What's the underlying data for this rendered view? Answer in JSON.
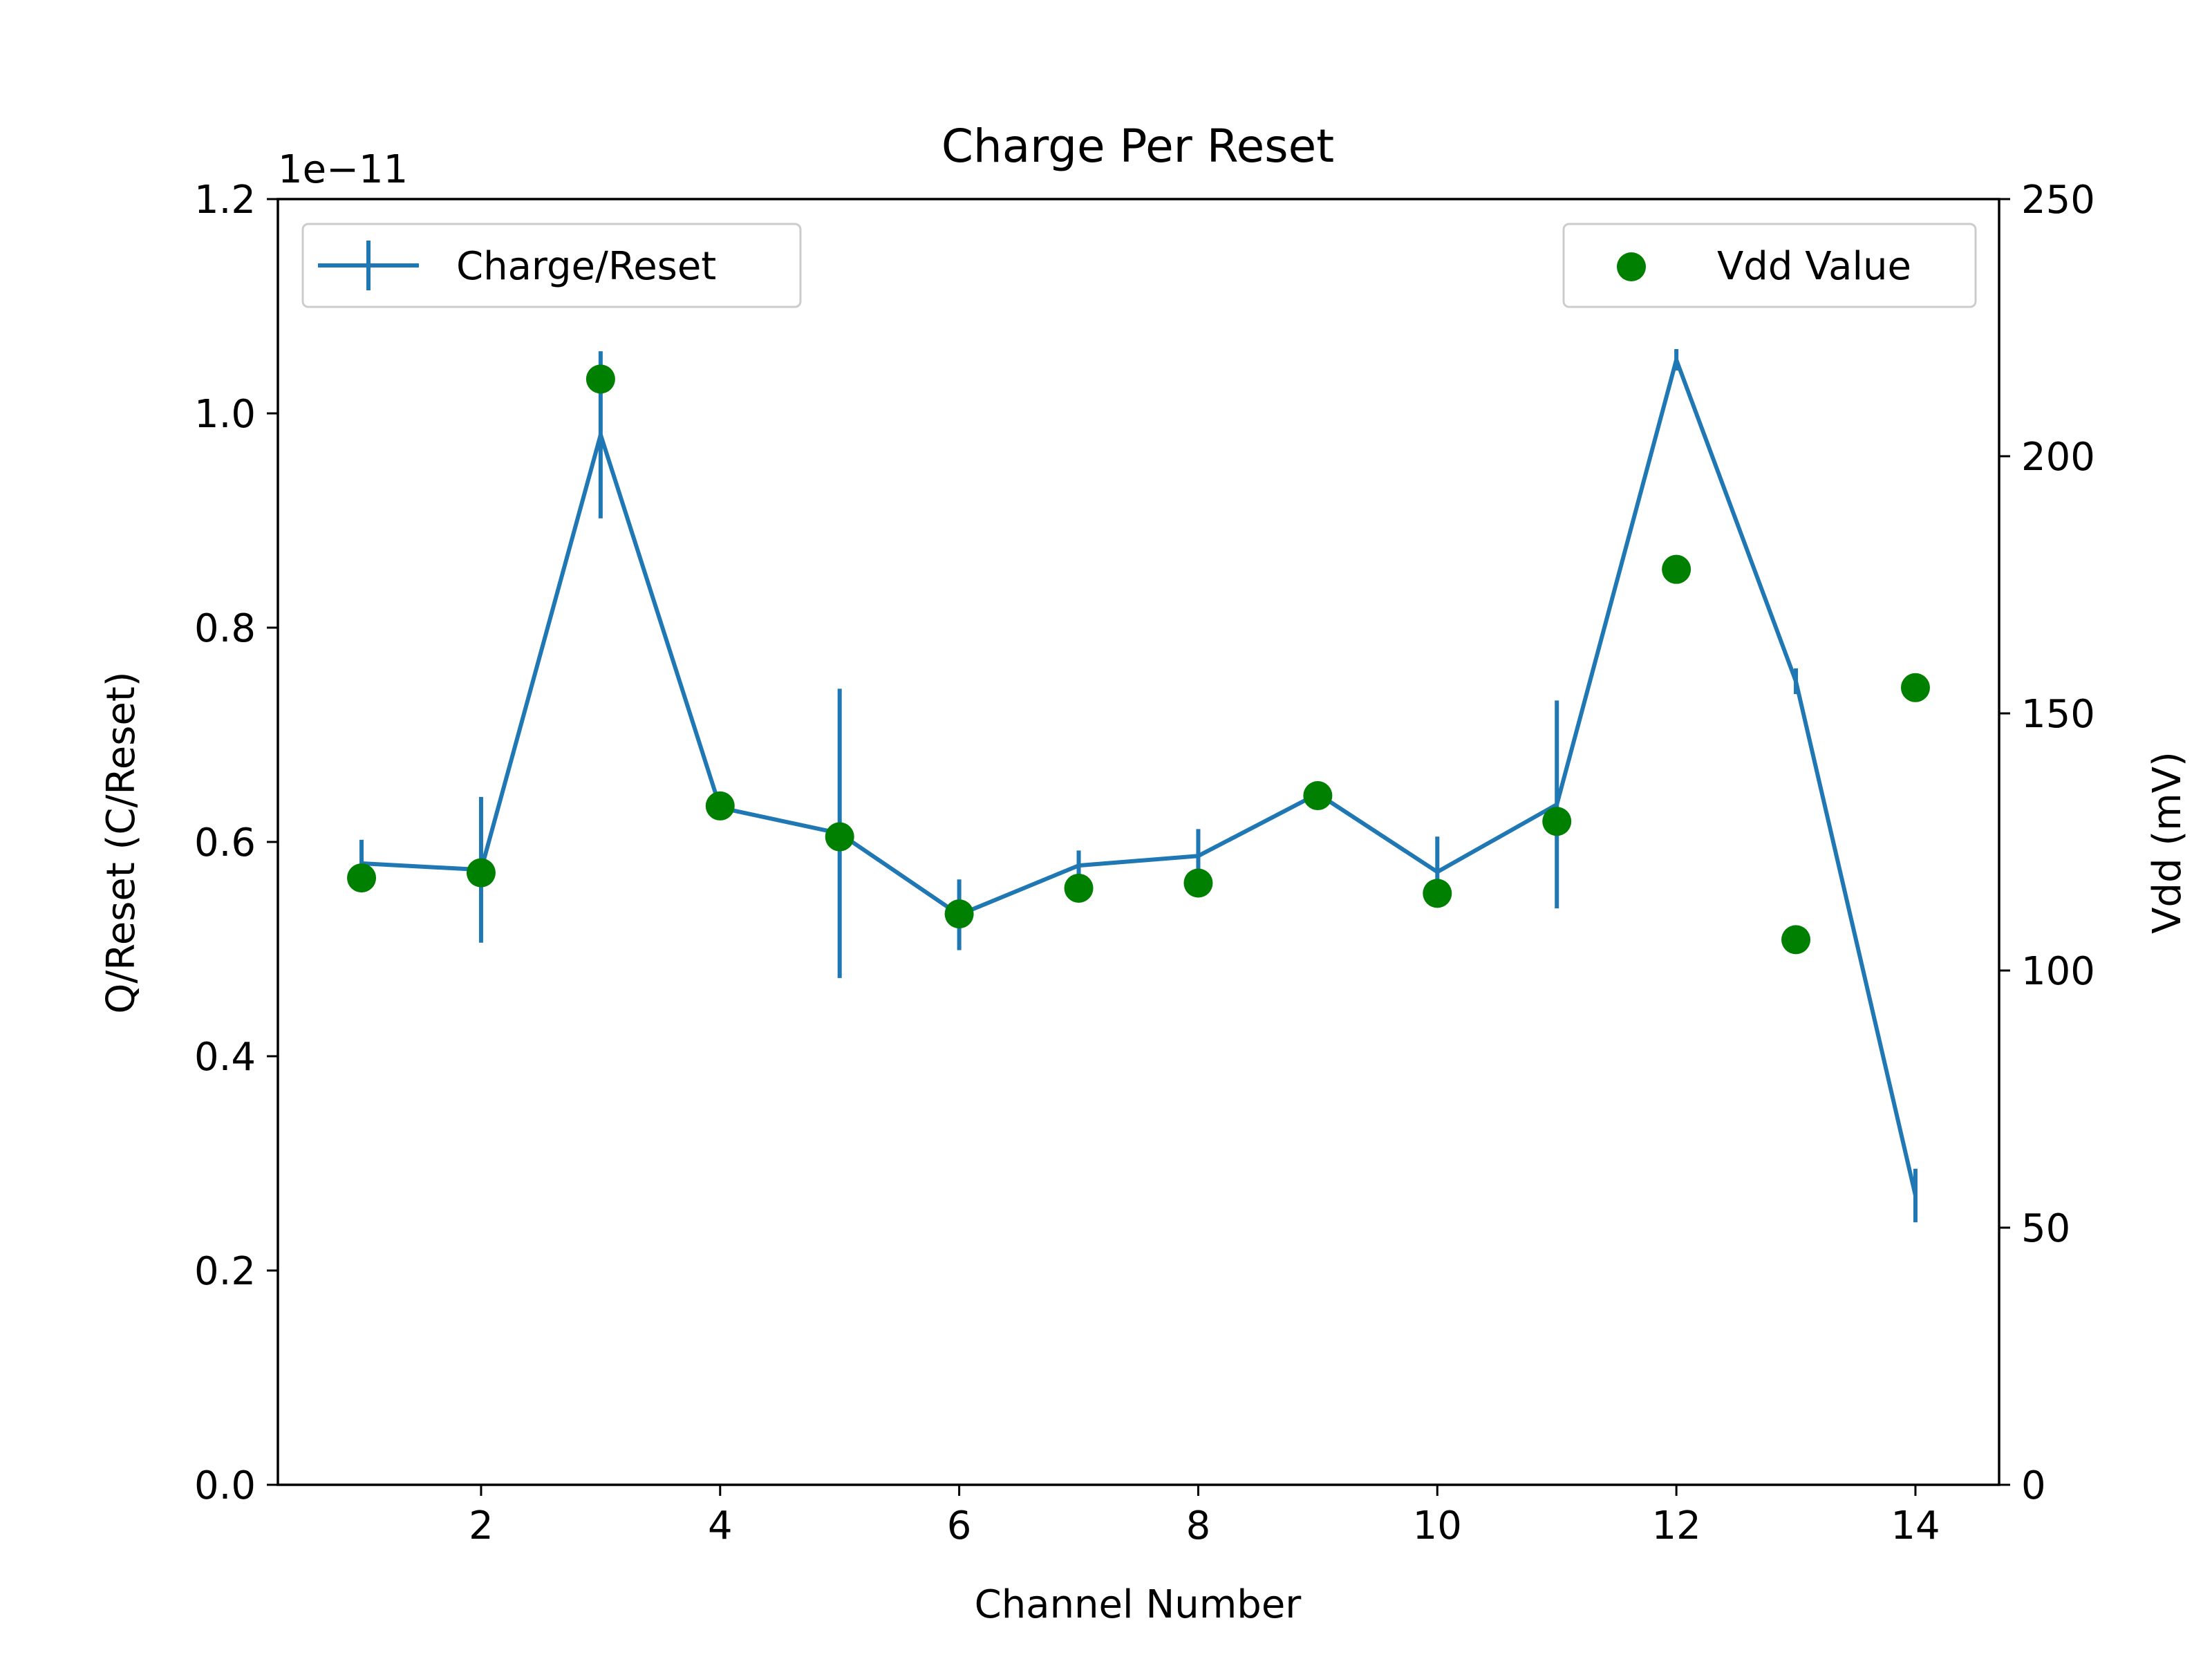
{
  "chart_data": {
    "type": "line",
    "title": "Charge Per Reset",
    "xlabel": "Channel Number",
    "ylabel": "Q/Reset (C/Reset)",
    "y2label": "Vdd (mV)",
    "y_offset_text": "1e−11",
    "xlim": [
      0.3,
      14.7
    ],
    "ylim": [
      0.0,
      1.2
    ],
    "y2lim": [
      0,
      250
    ],
    "x_ticks": [
      2,
      4,
      6,
      8,
      10,
      12,
      14
    ],
    "y_ticks": [
      "0.0",
      "0.2",
      "0.4",
      "0.6",
      "0.8",
      "1.0",
      "1.2"
    ],
    "y2_ticks": [
      "0",
      "50",
      "100",
      "150",
      "200",
      "250"
    ],
    "grid": false,
    "series": [
      {
        "name": "Charge/Reset",
        "kind": "errorbar-line",
        "color": "#1f77b4",
        "axis": "left",
        "x": [
          1,
          2,
          3,
          4,
          5,
          6,
          7,
          8,
          9,
          10,
          11,
          12,
          13,
          14
        ],
        "y": [
          0.58,
          0.574,
          0.98,
          0.632,
          0.608,
          0.532,
          0.578,
          0.587,
          0.645,
          0.572,
          0.635,
          1.05,
          0.75,
          0.27
        ],
        "yerr": [
          0.022,
          0.068,
          0.078,
          0.01,
          0.135,
          0.033,
          0.014,
          0.025,
          0.01,
          0.033,
          0.097,
          0.01,
          0.012,
          0.025
        ],
        "legend_position": "upper left"
      },
      {
        "name": "Vdd Value",
        "kind": "scatter",
        "color": "#008000",
        "axis": "right",
        "x": [
          1,
          2,
          3,
          4,
          5,
          6,
          7,
          8,
          9,
          10,
          11,
          12,
          13,
          14
        ],
        "y": [
          118,
          119,
          215,
          132,
          126,
          111,
          116,
          117,
          134,
          115,
          129,
          178,
          106,
          155
        ],
        "legend_position": "upper right"
      }
    ]
  }
}
